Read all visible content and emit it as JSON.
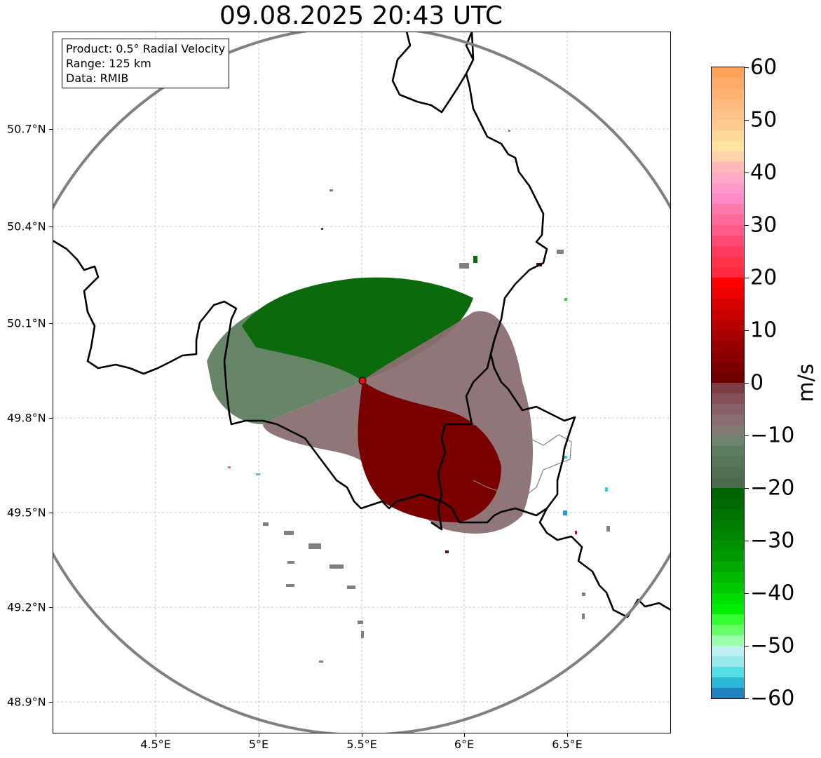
{
  "title": "09.08.2025 20:43 UTC",
  "info": {
    "product": "Product: 0.5° Radial Velocity",
    "range": "Range: 125 km",
    "source": "Data: RMIB"
  },
  "y_ticks": [
    "48.9°N",
    "49.2°N",
    "49.5°N",
    "49.8°N",
    "50.1°N",
    "50.4°N",
    "50.7°N"
  ],
  "x_ticks": [
    "4.5°E",
    "5°E",
    "5.5°E",
    "6°E",
    "6.5°E"
  ],
  "colorbar": {
    "unit": "m/s",
    "labels": [
      "60",
      "50",
      "40",
      "30",
      "20",
      "10",
      "0",
      "−10",
      "−20",
      "−30",
      "−40",
      "−50",
      "−60"
    ],
    "min": -60,
    "max": 60
  },
  "colors": {
    "range_ring": "#808080",
    "radar_site": "#e01010",
    "inbound_strong": "#0a6e0a",
    "inbound_weak": "#5f8060",
    "outbound_weak": "#8a6f72",
    "outbound_strong": "#7a0000"
  }
}
